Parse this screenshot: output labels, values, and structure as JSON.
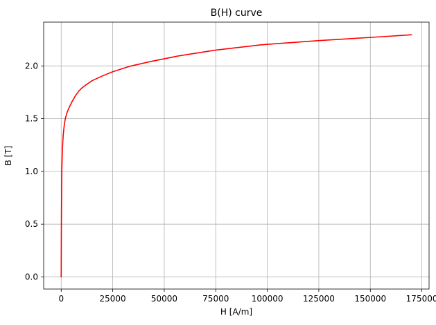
{
  "chart_data": {
    "type": "line",
    "title": "B(H) curve",
    "xlabel": "H [A/m]",
    "ylabel": "B [T]",
    "xlim": [
      -8500,
      178500
    ],
    "ylim": [
      -0.115,
      2.415
    ],
    "xticks": [
      0,
      25000,
      50000,
      75000,
      100000,
      125000,
      150000,
      175000
    ],
    "xtick_labels": [
      "0",
      "25000",
      "50000",
      "75000",
      "100000",
      "125000",
      "150000",
      "175000"
    ],
    "yticks": [
      0.0,
      0.5,
      1.0,
      1.5,
      2.0
    ],
    "ytick_labels": [
      "0.0",
      "0.5",
      "1.0",
      "1.5",
      "2.0"
    ],
    "grid": true,
    "legend": "none",
    "series": [
      {
        "color": "#ff0000",
        "x": [
          0,
          100,
          200,
          300,
          500,
          700,
          1000,
          1500,
          2000,
          2700,
          3500,
          4500,
          5500,
          7000,
          8500,
          10000,
          12000,
          15000,
          20000,
          25000,
          33000,
          43000,
          57000,
          75000,
          97000,
          125000,
          150000,
          170000
        ],
        "y": [
          0,
          0.5,
          0.8,
          1.0,
          1.15,
          1.25,
          1.35,
          1.44,
          1.5,
          1.55,
          1.59,
          1.63,
          1.67,
          1.72,
          1.76,
          1.79,
          1.82,
          1.86,
          1.905,
          1.945,
          1.995,
          2.04,
          2.095,
          2.15,
          2.2,
          2.24,
          2.27,
          2.295
        ]
      }
    ]
  }
}
